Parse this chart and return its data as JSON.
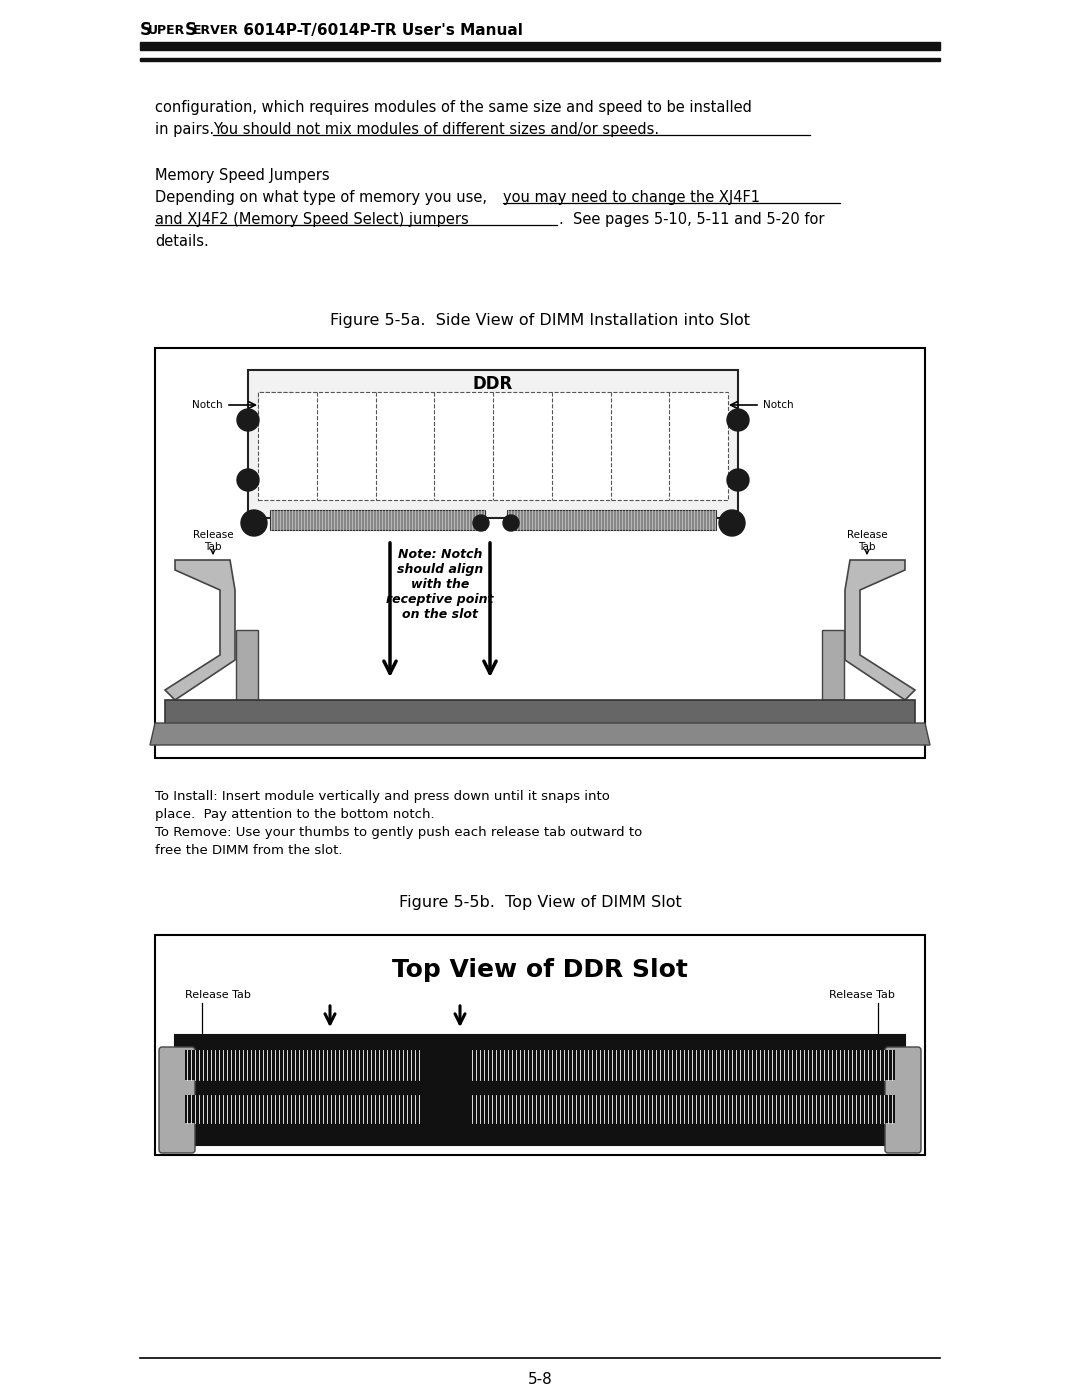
{
  "page_title_super": "S",
  "page_title_rest": "UPER",
  "page_title_server": "S",
  "page_title_erver": "ERVER",
  "page_title_full": "SuperServer 6014P-T/6014P-TR User’s Manual",
  "figure_5a_title": "Figure 5-5a.  Side View of DIMM Installation into Slot",
  "figure_5b_title": "Figure 5-5b.  Top View of DIMM Slot",
  "top_view_title": "Top View of DDR Slot",
  "note_text": "Note: Notch\nshould align\nwith the\nreceptive point\non the slot",
  "install_line1": "To Install: Insert module vertically and press down until it snaps into",
  "install_line2": "place.  Pay attention to the bottom notch.",
  "install_line3": "To Remove: Use your thumbs to gently push each release tab outward to",
  "install_line4": "free the DIMM from the slot.",
  "page_number": "5-8",
  "bg_color": "#ffffff",
  "text_color": "#000000",
  "header_line_color": "#111111"
}
